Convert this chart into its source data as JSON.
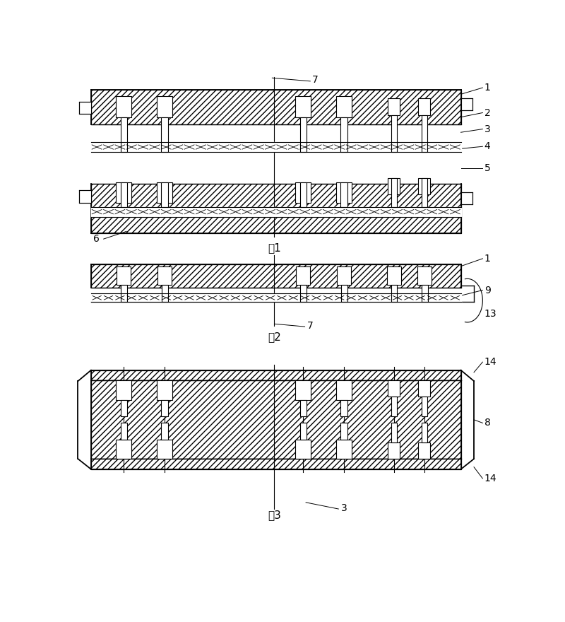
{
  "fig1_label": "图1",
  "fig2_label": "图2",
  "fig3_label": "图3",
  "bg_color": "#ffffff",
  "line_color": "#000000"
}
